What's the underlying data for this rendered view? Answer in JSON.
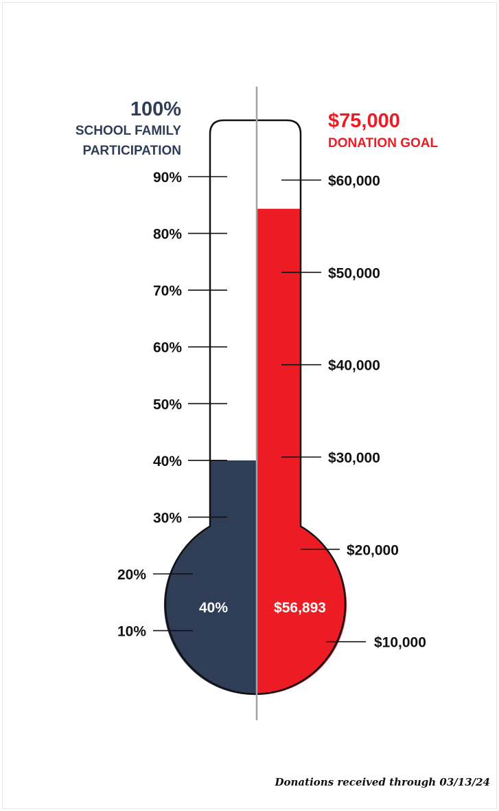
{
  "colors": {
    "participation": "#2f3d57",
    "donation": "#ed1c24",
    "outline": "#111111",
    "center_line": "#a3a3a3",
    "text": "#111111",
    "white": "#ffffff"
  },
  "chart_data": {
    "type": "thermometer",
    "participation": {
      "goal_value": "100%",
      "goal_label_line1": "SCHOOL FAMILY",
      "goal_label_line2": "PARTICIPATION",
      "current_percent": 40,
      "current_label": "40%",
      "ticks": [
        {
          "label": "90%",
          "value": 90
        },
        {
          "label": "80%",
          "value": 80
        },
        {
          "label": "70%",
          "value": 70
        },
        {
          "label": "60%",
          "value": 60
        },
        {
          "label": "50%",
          "value": 50
        },
        {
          "label": "40%",
          "value": 40
        },
        {
          "label": "30%",
          "value": 30
        },
        {
          "label": "20%",
          "value": 20
        },
        {
          "label": "10%",
          "value": 10
        }
      ]
    },
    "donations": {
      "goal_value": "$75,000",
      "goal_label": "DONATION GOAL",
      "current_amount": 56893,
      "current_label": "$56,893",
      "ticks": [
        {
          "label": "$60,000",
          "value": 60000
        },
        {
          "label": "$50,000",
          "value": 50000
        },
        {
          "label": "$40,000",
          "value": 40000
        },
        {
          "label": "$30,000",
          "value": 30000
        },
        {
          "label": "$20,000",
          "value": 20000
        },
        {
          "label": "$10,000",
          "value": 10000
        }
      ]
    },
    "footnote": "Donations received through 03/13/24"
  }
}
